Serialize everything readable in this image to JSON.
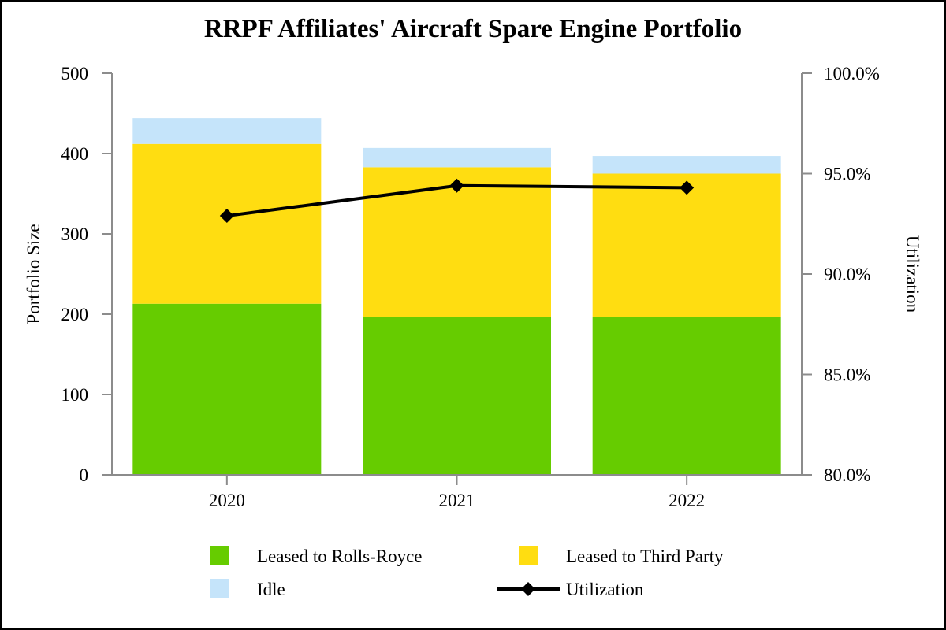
{
  "chart_data": {
    "type": "bar",
    "stacked": true,
    "title": "RRPF Affiliates' Aircraft Spare Engine Portfolio",
    "xlabel": "",
    "ylabel": "Portfolio Size",
    "y2label": "Utilization",
    "categories": [
      "2020",
      "2021",
      "2022"
    ],
    "ylim": [
      0,
      500
    ],
    "yticks": [
      "0",
      "100",
      "200",
      "300",
      "400",
      "500"
    ],
    "y2lim": [
      80,
      100
    ],
    "y2ticks": [
      "80.0%",
      "85.0%",
      "90.0%",
      "95.0%",
      "100.0%"
    ],
    "series": [
      {
        "name": "Leased to Rolls-Royce",
        "kind": "bar",
        "axis": "left",
        "color": "#66cc00",
        "values": [
          213,
          197,
          197
        ]
      },
      {
        "name": "Leased to Third Party",
        "kind": "bar",
        "axis": "left",
        "color": "#ffdd11",
        "values": [
          199,
          186,
          178
        ]
      },
      {
        "name": "Idle",
        "kind": "bar",
        "axis": "left",
        "color": "#c5e4fa",
        "values": [
          32,
          24,
          22
        ]
      },
      {
        "name": "Utilization",
        "kind": "line",
        "axis": "right",
        "color": "#000000",
        "marker": "diamond",
        "values": [
          92.9,
          94.4,
          94.3
        ]
      }
    ],
    "legend": {
      "position": "bottom",
      "order": [
        "Leased to Rolls-Royce",
        "Leased to Third Party",
        "Idle",
        "Utilization"
      ]
    },
    "grid": false
  }
}
